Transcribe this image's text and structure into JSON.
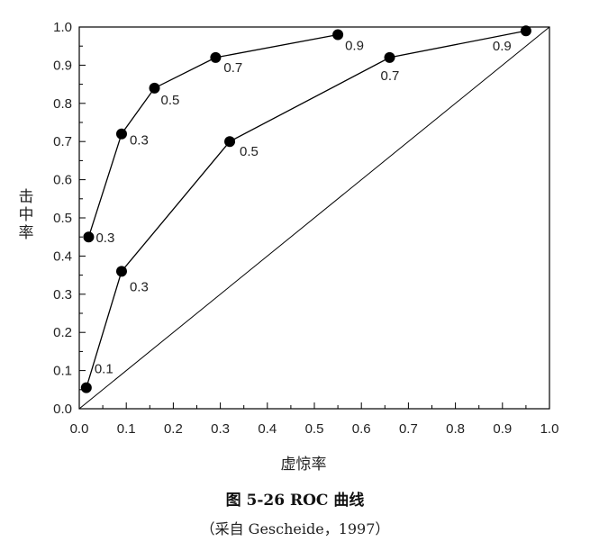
{
  "chart_data": {
    "type": "line",
    "xlabel": "虚惊率",
    "ylabel": "击中率",
    "xlim": [
      0,
      1
    ],
    "ylim": [
      0,
      1
    ],
    "xticks": [
      "0.0",
      "0.1",
      "0.2",
      "0.3",
      "0.4",
      "0.5",
      "0.6",
      "0.7",
      "0.8",
      "0.9",
      "1.0"
    ],
    "yticks": [
      "0.0",
      "0.1",
      "0.2",
      "0.3",
      "0.4",
      "0.5",
      "0.6",
      "0.7",
      "0.8",
      "0.9",
      "1.0"
    ],
    "grid": false,
    "series": [
      {
        "points": [
          {
            "x": 0.02,
            "y": 0.45,
            "label": "0.3"
          },
          {
            "x": 0.09,
            "y": 0.72,
            "label": "0.3"
          },
          {
            "x": 0.16,
            "y": 0.84,
            "label": "0.5"
          },
          {
            "x": 0.29,
            "y": 0.92,
            "label": "0.7"
          },
          {
            "x": 0.55,
            "y": 0.98,
            "label": "0.9"
          }
        ]
      },
      {
        "points": [
          {
            "x": 0.015,
            "y": 0.055,
            "label": "0.1"
          },
          {
            "x": 0.09,
            "y": 0.36,
            "label": "0.3"
          },
          {
            "x": 0.32,
            "y": 0.7,
            "label": "0.5"
          },
          {
            "x": 0.66,
            "y": 0.92,
            "label": "0.7"
          },
          {
            "x": 0.95,
            "y": 0.99,
            "label": "0.9"
          }
        ]
      }
    ],
    "reference_line": {
      "from": [
        0,
        0
      ],
      "to": [
        1,
        1
      ]
    }
  },
  "caption": {
    "title": "图 5-26 ROC 曲线",
    "source": "（采自 Gescheide，1997）"
  },
  "colors": {
    "line": "#000000",
    "marker": "#000000",
    "text": "#222222"
  }
}
